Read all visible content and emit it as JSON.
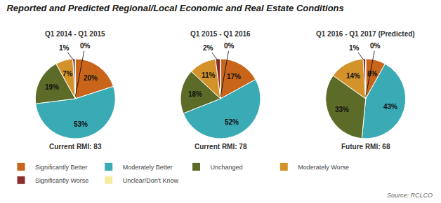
{
  "title": "Reported and Predicted Regional/Local Economic and Real Estate Conditions",
  "annotations": [
    "Source: RCLCO"
  ],
  "legend": "bottom",
  "chart_data": [
    {
      "type": "pie",
      "title": "Q1 2014 - Q1 2015",
      "categories": [
        "Significantly Better",
        "Moderately Better",
        "Unchanged",
        "Moderately Worse",
        "Significantly Worse",
        "Unclear/Don't Know"
      ],
      "values": [
        20,
        53,
        19,
        7,
        1,
        0
      ],
      "value_labels": [
        "20%",
        "53%",
        "19%",
        "7%",
        "1%",
        "0%"
      ],
      "colors": [
        "#C8651B",
        "#3AABB5",
        "#5C6B28",
        "#D4922B",
        "#8B2E2A",
        "#F5ECA0"
      ],
      "data_labels": true,
      "annotations": [
        "Current RMI: 83"
      ]
    },
    {
      "type": "pie",
      "title": "Q1 2015 - Q1 2016",
      "categories": [
        "Significantly Better",
        "Moderately Better",
        "Unchanged",
        "Moderately Worse",
        "Significantly Worse",
        "Unclear/Don't Know"
      ],
      "values": [
        17,
        52,
        18,
        11,
        2,
        0
      ],
      "value_labels": [
        "17%",
        "52%",
        "18%",
        "11%",
        "2%",
        "0%"
      ],
      "colors": [
        "#C8651B",
        "#3AABB5",
        "#5C6B28",
        "#D4922B",
        "#8B2E2A",
        "#F5ECA0"
      ],
      "data_labels": true,
      "annotations": [
        "Current RMI: 78"
      ]
    },
    {
      "type": "pie",
      "title": "Q1 2016 - Q1 2017 (Predicted)",
      "categories": [
        "Significantly Better",
        "Moderately Better",
        "Unchanged",
        "Moderately Worse",
        "Significantly Worse",
        "Unclear/Don't Know"
      ],
      "values": [
        8,
        43,
        33,
        14,
        1,
        0
      ],
      "value_labels": [
        "8%",
        "43%",
        "33%",
        "14%",
        "1%",
        "0%"
      ],
      "colors": [
        "#C8651B",
        "#3AABB5",
        "#5C6B28",
        "#D4922B",
        "#8B2E2A",
        "#F5ECA0"
      ],
      "data_labels": true,
      "annotations": [
        "Future RMI: 68"
      ]
    }
  ]
}
